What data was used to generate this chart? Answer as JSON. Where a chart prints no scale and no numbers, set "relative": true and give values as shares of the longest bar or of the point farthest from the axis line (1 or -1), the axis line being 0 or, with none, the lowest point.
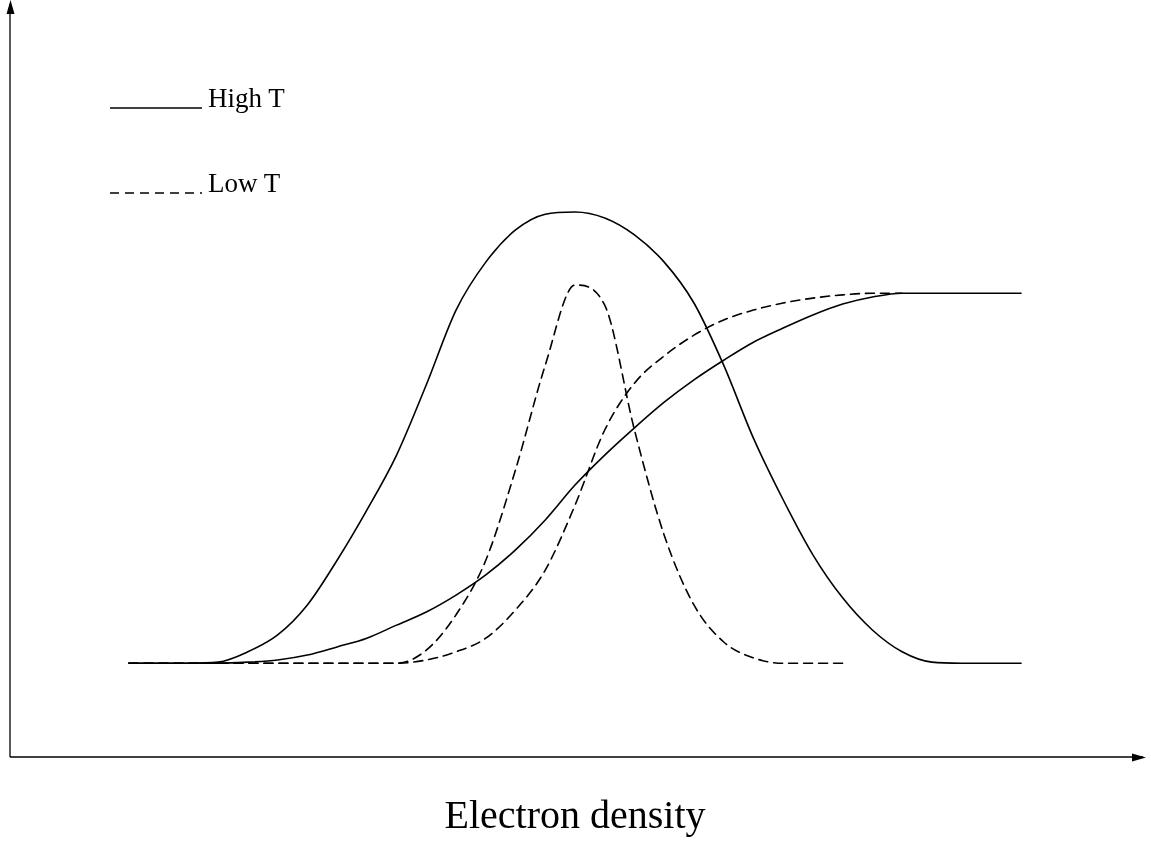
{
  "chart_data": {
    "type": "line",
    "xlabel": "Electron density",
    "relative": true,
    "legend": "top left",
    "marker": "none",
    "categories": [
      null,
      null,
      null,
      null,
      null,
      null,
      null,
      null,
      null,
      null,
      null,
      null,
      null,
      null,
      null,
      null,
      null,
      null,
      null,
      null,
      null,
      null,
      null,
      null,
      null,
      null,
      null,
      null,
      null,
      null,
      null,
      null,
      null,
      null,
      null,
      null,
      null,
      null,
      null
    ],
    "series": [
      {
        "name": "High T",
        "color": "#000000",
        "line_style": "solid",
        "values": [
          null,
          null,
          null,
          null,
          0.172,
          0.172,
          0.172,
          0.174,
          0.193,
          0.224,
          0.279,
          0.361,
          0.453,
          0.554,
          0.683,
          0.82,
          0.908,
          0.967,
          0.996,
          1,
          0.989,
          0.958,
          0.908,
          0.833,
          0.719,
          0.585,
          0.472,
          0.371,
          0.292,
          0.233,
          0.193,
          0.174,
          0.172,
          0.172,
          0.172,
          null,
          null,
          null,
          null
        ]
      },
      {
        "color": "#000000",
        "line_style": "solid",
        "values": [
          null,
          null,
          null,
          null,
          0.172,
          0.172,
          0.172,
          0.172,
          0.174,
          0.178,
          0.187,
          0.202,
          0.218,
          0.242,
          0.266,
          0.297,
          0.334,
          0.38,
          0.435,
          0.499,
          0.554,
          0.604,
          0.651,
          0.692,
          0.728,
          0.761,
          0.787,
          0.811,
          0.831,
          0.844,
          0.851,
          0.851,
          0.851,
          0.851,
          0.851,
          null,
          null,
          null,
          null
        ]
      },
      {
        "name": "Low T",
        "color": "#000000",
        "line_style": "dashed",
        "values": [
          null,
          null,
          null,
          null,
          0.172,
          0.172,
          0.172,
          0.172,
          0.172,
          0.172,
          0.172,
          0.172,
          0.172,
          0.172,
          0.196,
          0.261,
          0.361,
          0.527,
          0.719,
          0.866,
          0.829,
          0.6,
          0.407,
          0.279,
          0.211,
          0.182,
          0.172,
          0.172,
          0.172,
          null,
          null,
          null,
          null,
          null,
          null,
          null,
          null,
          null,
          null
        ]
      },
      {
        "color": "#000000",
        "line_style": "dashed",
        "values": [
          null,
          null,
          null,
          null,
          0.172,
          0.172,
          0.172,
          0.172,
          0.172,
          0.172,
          0.172,
          0.172,
          0.172,
          0.172,
          0.178,
          0.193,
          0.218,
          0.27,
          0.343,
          0.462,
          0.6,
          0.686,
          0.736,
          0.774,
          0.802,
          0.82,
          0.833,
          0.842,
          0.848,
          0.851,
          0.851,
          null,
          null,
          null,
          null,
          null,
          null,
          null,
          null
        ]
      }
    ]
  }
}
